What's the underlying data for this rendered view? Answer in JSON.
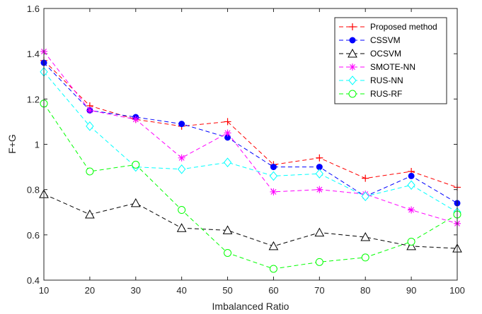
{
  "chart_data": {
    "type": "line",
    "xlabel": "Imbalanced Ratio",
    "ylabel": "F+G",
    "xlim": [
      10,
      100
    ],
    "ylim": [
      0.4,
      1.6
    ],
    "x": [
      10,
      20,
      30,
      40,
      50,
      60,
      70,
      80,
      90,
      100
    ],
    "xticks": [
      "10",
      "20",
      "30",
      "40",
      "50",
      "60",
      "70",
      "80",
      "90",
      "100"
    ],
    "yticks": [
      "0.4",
      "0.6",
      "0.8",
      "1",
      "1.2",
      "1.4",
      "1.6"
    ],
    "grid": false,
    "legend_position": "top-right",
    "series": [
      {
        "name": "Proposed method",
        "color": "#ff0000",
        "marker": "plus",
        "values": [
          1.37,
          1.17,
          1.11,
          1.08,
          1.1,
          0.91,
          0.94,
          0.85,
          0.88,
          0.81
        ]
      },
      {
        "name": "CSSVM",
        "color": "#0000ff",
        "marker": "filled-circle",
        "values": [
          1.36,
          1.15,
          1.12,
          1.09,
          1.03,
          0.9,
          0.9,
          0.77,
          0.86,
          0.74
        ]
      },
      {
        "name": "OCSVM",
        "color": "#000000",
        "marker": "triangle",
        "values": [
          0.78,
          0.69,
          0.74,
          0.63,
          0.62,
          0.55,
          0.61,
          0.59,
          0.55,
          0.54
        ]
      },
      {
        "name": "SMOTE-NN",
        "color": "#ff00ff",
        "marker": "asterisk",
        "values": [
          1.41,
          1.15,
          1.11,
          0.94,
          1.05,
          0.79,
          0.8,
          0.78,
          0.71,
          0.65
        ]
      },
      {
        "name": "RUS-NN",
        "color": "#00ffff",
        "marker": "diamond",
        "values": [
          1.32,
          1.08,
          0.9,
          0.89,
          0.92,
          0.86,
          0.87,
          0.77,
          0.82,
          0.7
        ]
      },
      {
        "name": "RUS-RF",
        "color": "#00ff00",
        "marker": "circle",
        "values": [
          1.18,
          0.88,
          0.91,
          0.71,
          0.52,
          0.45,
          0.48,
          0.5,
          0.57,
          0.69
        ]
      }
    ]
  }
}
